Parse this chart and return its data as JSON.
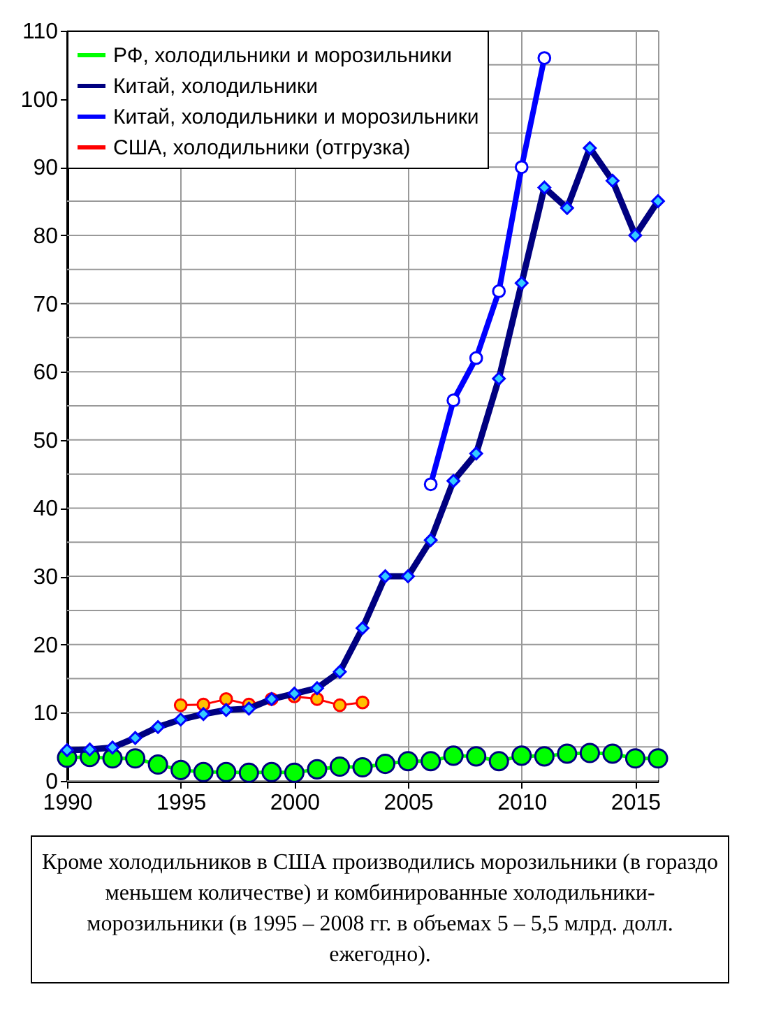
{
  "chart_data": {
    "type": "line",
    "x": [
      1990,
      1991,
      1992,
      1993,
      1994,
      1995,
      1996,
      1997,
      1998,
      1999,
      2000,
      2001,
      2002,
      2003,
      2004,
      2005,
      2006,
      2007,
      2008,
      2009,
      2010,
      2011,
      2012,
      2013,
      2014,
      2015,
      2016
    ],
    "xlim": [
      1990,
      2016
    ],
    "xticks": [
      1990,
      1995,
      2000,
      2005,
      2010,
      2015
    ],
    "ylim": [
      0,
      110
    ],
    "yticks": [
      0,
      {
        "value": 5,
        "label": null
      },
      10,
      {
        "value": 15,
        "label": null
      },
      20,
      {
        "value": 25,
        "label": null
      },
      30,
      {
        "value": 35,
        "label": null
      },
      40,
      {
        "value": 45,
        "label": null
      },
      50,
      {
        "value": 55,
        "label": null
      },
      60,
      {
        "value": 65,
        "label": null
      },
      70,
      {
        "value": 75,
        "label": null
      },
      80,
      {
        "value": 85,
        "label": null
      },
      90,
      {
        "value": 95,
        "label": null
      },
      100,
      {
        "value": 105,
        "label": null
      },
      110
    ],
    "grid": true,
    "legend": "top left",
    "series": [
      {
        "name": "РФ, холодильники и морозильники",
        "color": "#00ff00",
        "marker": "circle",
        "values": [
          3.4,
          3.5,
          3.3,
          3.3,
          2.4,
          1.6,
          1.3,
          1.3,
          1.2,
          1.3,
          1.2,
          1.7,
          2.1,
          2.0,
          2.5,
          2.9,
          2.9,
          3.7,
          3.6,
          2.9,
          3.7,
          3.6,
          4.0,
          4.1,
          4.0,
          3.3,
          3.3
        ]
      },
      {
        "name": "Китай, холодильники",
        "color": "#000080",
        "marker": "diamond",
        "values": [
          4.5,
          4.6,
          4.9,
          6.3,
          7.9,
          9.0,
          9.8,
          10.4,
          10.6,
          12.0,
          12.8,
          13.6,
          16,
          22.4,
          30,
          30,
          35.3,
          44,
          48,
          59,
          73,
          87,
          84,
          92.8,
          88,
          80,
          85
        ]
      },
      {
        "name": "Китай, холодильники и морозильники",
        "color": "#0000ff",
        "marker": "circle",
        "x": [
          2006,
          2007,
          2008,
          2009,
          2010,
          2011
        ],
        "values": [
          43.5,
          55.8,
          62,
          71.8,
          90,
          106
        ]
      },
      {
        "name": "США, холодильники (отгрузка)",
        "color": "#ff0000",
        "marker": "circle",
        "x": [
          1995,
          1996,
          1997,
          1998,
          1999,
          2000,
          2001,
          2002,
          2003
        ],
        "values": [
          11.1,
          11.2,
          12.0,
          11.2,
          12.0,
          12.4,
          12.0,
          11.1,
          11.5
        ]
      }
    ],
    "annotations": [
      "Кроме холодильников в США производились морозильники (в гораздо меньшем количестве) и комбинированные холодильники-морозильники (в 1995 – 2008 гг. в объемах 5 – 5,5 млрд. долл. ежегодно)."
    ]
  }
}
